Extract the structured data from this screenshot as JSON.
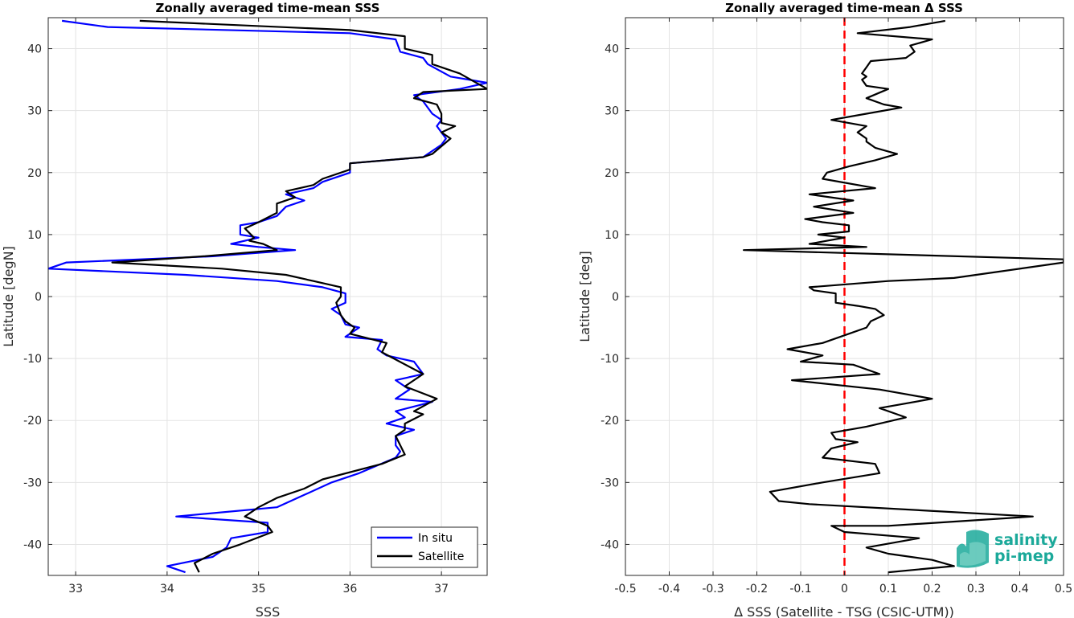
{
  "chart_data": [
    {
      "type": "line",
      "title": "Zonally averaged time-mean SSS",
      "xlabel": "SSS",
      "ylabel": "Latitude [degN]",
      "xlim": [
        32.7,
        37.5
      ],
      "ylim": [
        -45,
        45
      ],
      "xticks": [
        33,
        34,
        35,
        36,
        37
      ],
      "yticks": [
        -40,
        -30,
        -20,
        -10,
        0,
        10,
        20,
        30,
        40
      ],
      "grid": true,
      "legend": "bottom-right",
      "series": [
        {
          "name": "In situ",
          "color": "#0000ff",
          "points": [
            [
              32.85,
              44.5
            ],
            [
              33.35,
              43.5
            ],
            [
              36.0,
              42.5
            ],
            [
              36.5,
              41.5
            ],
            [
              36.55,
              39.5
            ],
            [
              36.8,
              38.5
            ],
            [
              36.85,
              37.5
            ],
            [
              37.1,
              35.5
            ],
            [
              37.5,
              34.5
            ],
            [
              37.2,
              33.5
            ],
            [
              36.7,
              32.5
            ],
            [
              36.8,
              31.5
            ],
            [
              36.9,
              29.5
            ],
            [
              37.0,
              28.5
            ],
            [
              36.95,
              27.5
            ],
            [
              37.0,
              26.5
            ],
            [
              37.05,
              25.5
            ],
            [
              37.0,
              24.5
            ],
            [
              36.8,
              22.5
            ],
            [
              36.0,
              21.5
            ],
            [
              36.0,
              20.0
            ],
            [
              35.7,
              18.5
            ],
            [
              35.6,
              17.5
            ],
            [
              35.3,
              16.5
            ],
            [
              35.5,
              15.5
            ],
            [
              35.3,
              14.5
            ],
            [
              35.2,
              13.0
            ],
            [
              35.0,
              12.0
            ],
            [
              34.8,
              11.5
            ],
            [
              34.8,
              10.0
            ],
            [
              35.0,
              9.5
            ],
            [
              34.7,
              8.5
            ],
            [
              35.0,
              8.0
            ],
            [
              35.4,
              7.5
            ],
            [
              34.5,
              6.5
            ],
            [
              32.9,
              5.5
            ],
            [
              32.7,
              4.5
            ],
            [
              34.2,
              3.5
            ],
            [
              35.2,
              2.5
            ],
            [
              35.7,
              1.5
            ],
            [
              35.95,
              0.5
            ],
            [
              35.95,
              -1.0
            ],
            [
              35.8,
              -2.0
            ],
            [
              35.9,
              -3.0
            ],
            [
              35.95,
              -4.5
            ],
            [
              36.1,
              -5.0
            ],
            [
              35.95,
              -6.5
            ],
            [
              36.35,
              -7.0
            ],
            [
              36.3,
              -8.5
            ],
            [
              36.4,
              -9.5
            ],
            [
              36.7,
              -10.5
            ],
            [
              36.75,
              -11.5
            ],
            [
              36.8,
              -12.5
            ],
            [
              36.5,
              -13.5
            ],
            [
              36.65,
              -15.0
            ],
            [
              36.5,
              -16.5
            ],
            [
              36.9,
              -17.0
            ],
            [
              36.5,
              -18.5
            ],
            [
              36.6,
              -19.5
            ],
            [
              36.4,
              -20.5
            ],
            [
              36.7,
              -21.5
            ],
            [
              36.5,
              -22.5
            ],
            [
              36.5,
              -24.0
            ],
            [
              36.55,
              -25.0
            ],
            [
              36.5,
              -26.0
            ],
            [
              36.1,
              -28.5
            ],
            [
              35.8,
              -30.0
            ],
            [
              35.5,
              -32.0
            ],
            [
              35.2,
              -34.0
            ],
            [
              34.1,
              -35.5
            ],
            [
              35.1,
              -36.5
            ],
            [
              35.1,
              -38.0
            ],
            [
              34.7,
              -39.0
            ],
            [
              34.65,
              -40.5
            ],
            [
              34.5,
              -42.0
            ],
            [
              34.0,
              -43.5
            ],
            [
              34.2,
              -44.5
            ]
          ]
        },
        {
          "name": "Satellite",
          "color": "#000000",
          "points": [
            [
              33.7,
              44.5
            ],
            [
              36.0,
              43.0
            ],
            [
              36.6,
              42.0
            ],
            [
              36.6,
              40.0
            ],
            [
              36.9,
              39.0
            ],
            [
              36.9,
              37.5
            ],
            [
              37.2,
              36.0
            ],
            [
              37.5,
              33.5
            ],
            [
              36.8,
              33.0
            ],
            [
              36.7,
              32.0
            ],
            [
              36.95,
              31.0
            ],
            [
              37.0,
              29.5
            ],
            [
              37.0,
              28.0
            ],
            [
              37.15,
              27.5
            ],
            [
              37.0,
              26.5
            ],
            [
              37.1,
              25.5
            ],
            [
              36.9,
              23.0
            ],
            [
              36.8,
              22.5
            ],
            [
              36.0,
              21.5
            ],
            [
              36.0,
              20.5
            ],
            [
              35.7,
              19.0
            ],
            [
              35.6,
              18.0
            ],
            [
              35.3,
              17.0
            ],
            [
              35.4,
              16.0
            ],
            [
              35.2,
              15.0
            ],
            [
              35.2,
              13.5
            ],
            [
              35.0,
              12.0
            ],
            [
              34.85,
              11.0
            ],
            [
              34.95,
              9.5
            ],
            [
              34.9,
              9.0
            ],
            [
              35.05,
              8.5
            ],
            [
              35.2,
              7.5
            ],
            [
              34.4,
              6.5
            ],
            [
              33.4,
              5.5
            ],
            [
              34.6,
              4.5
            ],
            [
              35.3,
              3.5
            ],
            [
              35.6,
              2.5
            ],
            [
              35.9,
              1.5
            ],
            [
              35.9,
              0.0
            ],
            [
              35.85,
              -1.0
            ],
            [
              35.9,
              -3.0
            ],
            [
              35.95,
              -4.0
            ],
            [
              36.05,
              -5.0
            ],
            [
              36.0,
              -6.0
            ],
            [
              36.4,
              -7.5
            ],
            [
              36.35,
              -9.0
            ],
            [
              36.8,
              -12.5
            ],
            [
              36.6,
              -14.5
            ],
            [
              36.95,
              -16.5
            ],
            [
              36.7,
              -18.5
            ],
            [
              36.8,
              -19.0
            ],
            [
              36.6,
              -20.5
            ],
            [
              36.6,
              -21.5
            ],
            [
              36.5,
              -22.5
            ],
            [
              36.55,
              -24.0
            ],
            [
              36.6,
              -25.5
            ],
            [
              36.35,
              -27.0
            ],
            [
              35.7,
              -29.5
            ],
            [
              35.5,
              -31.0
            ],
            [
              35.2,
              -32.5
            ],
            [
              35.0,
              -34.0
            ],
            [
              34.85,
              -35.5
            ],
            [
              35.1,
              -37.0
            ],
            [
              35.15,
              -38.0
            ],
            [
              34.8,
              -40.0
            ],
            [
              34.5,
              -41.5
            ],
            [
              34.3,
              -43.0
            ],
            [
              34.35,
              -44.5
            ]
          ]
        }
      ]
    },
    {
      "type": "line",
      "title": "Zonally averaged time-mean Δ SSS",
      "xlabel": "Δ SSS (Satellite - TSG (CSIC-UTM))",
      "ylabel": "Latitude [deg]",
      "xlim": [
        -0.5,
        0.5
      ],
      "ylim": [
        -45,
        45
      ],
      "xticks": [
        -0.5,
        -0.4,
        -0.3,
        -0.2,
        -0.1,
        0,
        0.1,
        0.2,
        0.3,
        0.4,
        0.5
      ],
      "yticks": [
        -40,
        -30,
        -20,
        -10,
        0,
        10,
        20,
        30,
        40
      ],
      "grid": true,
      "reference_line": {
        "x": 0,
        "color": "#ff0000",
        "style": "dashed"
      },
      "series": [
        {
          "color": "#000000",
          "points": [
            [
              0.23,
              44.5
            ],
            [
              0.15,
              43.5
            ],
            [
              0.03,
              42.5
            ],
            [
              0.2,
              41.5
            ],
            [
              0.15,
              40.5
            ],
            [
              0.16,
              39.5
            ],
            [
              0.14,
              38.5
            ],
            [
              0.06,
              38.0
            ],
            [
              0.05,
              37.0
            ],
            [
              0.04,
              36.0
            ],
            [
              0.05,
              35.5
            ],
            [
              0.04,
              35.0
            ],
            [
              0.05,
              34.0
            ],
            [
              0.1,
              33.5
            ],
            [
              0.05,
              32.0
            ],
            [
              0.09,
              31.0
            ],
            [
              0.13,
              30.5
            ],
            [
              0.05,
              29.5
            ],
            [
              -0.03,
              28.5
            ],
            [
              0.05,
              27.5
            ],
            [
              0.03,
              26.5
            ],
            [
              0.05,
              25.5
            ],
            [
              0.05,
              25.0
            ],
            [
              0.07,
              24.0
            ],
            [
              0.12,
              23.0
            ],
            [
              0.07,
              22.0
            ],
            [
              0.01,
              21.0
            ],
            [
              -0.04,
              20.0
            ],
            [
              -0.05,
              19.0
            ],
            [
              0.07,
              17.5
            ],
            [
              -0.08,
              16.5
            ],
            [
              0.02,
              15.5
            ],
            [
              -0.07,
              14.5
            ],
            [
              0.02,
              13.5
            ],
            [
              -0.09,
              12.5
            ],
            [
              -0.05,
              12.0
            ],
            [
              0.01,
              11.5
            ],
            [
              0.01,
              10.5
            ],
            [
              -0.06,
              10.0
            ],
            [
              0.0,
              9.5
            ],
            [
              -0.08,
              8.5
            ],
            [
              0.05,
              8.0
            ],
            [
              -0.23,
              7.5
            ],
            [
              0.5,
              6.0
            ],
            [
              0.5,
              5.5
            ],
            [
              0.25,
              3.0
            ],
            [
              0.1,
              2.5
            ],
            [
              -0.08,
              1.5
            ],
            [
              -0.07,
              1.0
            ],
            [
              -0.02,
              0.5
            ],
            [
              -0.02,
              -1.0
            ],
            [
              0.03,
              -1.5
            ],
            [
              0.07,
              -2.0
            ],
            [
              0.09,
              -3.0
            ],
            [
              0.06,
              -4.0
            ],
            [
              0.05,
              -5.0
            ],
            [
              0.01,
              -6.0
            ],
            [
              -0.05,
              -7.5
            ],
            [
              -0.13,
              -8.5
            ],
            [
              -0.05,
              -9.5
            ],
            [
              -0.1,
              -10.5
            ],
            [
              0.02,
              -11.0
            ],
            [
              0.08,
              -12.5
            ],
            [
              -0.12,
              -13.5
            ],
            [
              0.08,
              -15.0
            ],
            [
              0.2,
              -16.5
            ],
            [
              0.08,
              -18.0
            ],
            [
              0.14,
              -19.5
            ],
            [
              0.05,
              -21.0
            ],
            [
              -0.03,
              -22.0
            ],
            [
              -0.02,
              -23.0
            ],
            [
              0.03,
              -23.5
            ],
            [
              -0.03,
              -24.5
            ],
            [
              -0.05,
              -26.0
            ],
            [
              0.07,
              -27.0
            ],
            [
              0.08,
              -28.5
            ],
            [
              -0.05,
              -30.0
            ],
            [
              -0.17,
              -31.5
            ],
            [
              -0.15,
              -33.0
            ],
            [
              -0.08,
              -33.5
            ],
            [
              0.43,
              -35.5
            ],
            [
              0.1,
              -37.0
            ],
            [
              -0.03,
              -37.0
            ],
            [
              0.0,
              -38.0
            ],
            [
              0.17,
              -39.0
            ],
            [
              0.05,
              -40.5
            ],
            [
              0.1,
              -41.5
            ],
            [
              0.2,
              -42.5
            ],
            [
              0.25,
              -43.5
            ],
            [
              0.1,
              -44.5
            ]
          ]
        }
      ]
    }
  ],
  "legend": {
    "insitu_label": "In situ",
    "satellite_label": "Satellite"
  },
  "logo": {
    "line1": "salinity",
    "line2": "pi-mep",
    "color": "#1ba99a"
  }
}
